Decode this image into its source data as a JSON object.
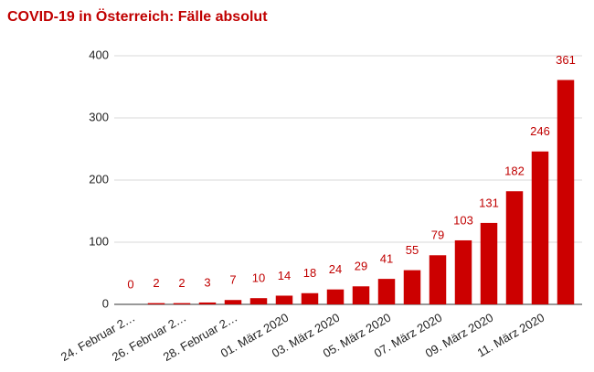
{
  "chart_data": {
    "type": "bar",
    "title": "COVID-19 in Österreich: Fälle absolut",
    "categories": [
      "24. Februar 2…",
      null,
      "26. Februar 2…",
      null,
      "28. Februar 2…",
      null,
      "01. März 2020",
      null,
      "03. März 2020",
      null,
      "05. März 2020",
      null,
      "07. März 2020",
      null,
      "09. März 2020",
      null,
      "11. März 2020",
      null
    ],
    "values": [
      0,
      2,
      2,
      3,
      7,
      10,
      14,
      18,
      24,
      29,
      41,
      55,
      79,
      103,
      131,
      182,
      246,
      361
    ],
    "color": "#cc0000",
    "ylim": [
      0,
      400
    ],
    "yticks": [
      0,
      100,
      200,
      300,
      400
    ],
    "grid": true
  }
}
